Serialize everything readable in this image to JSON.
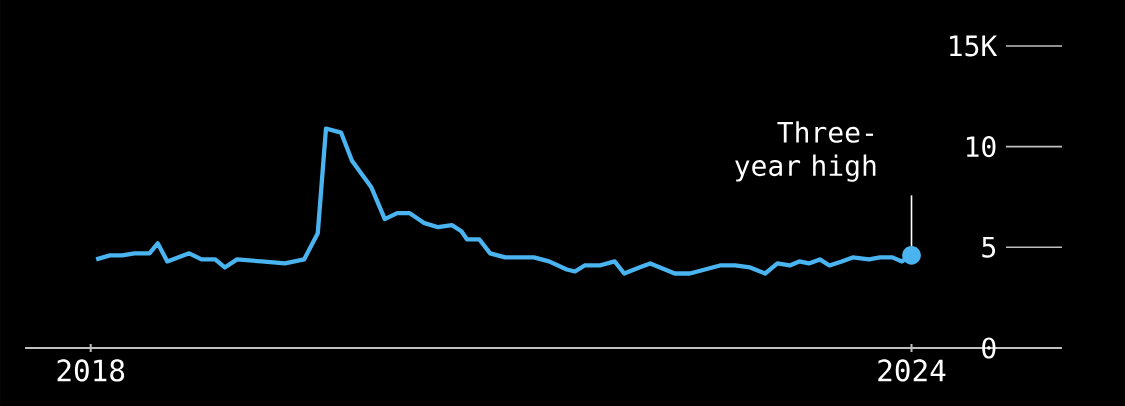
{
  "chart_data": {
    "type": "line",
    "color": "#4ab4f0",
    "x": [
      2018.04,
      2018.14,
      2018.23,
      2018.32,
      2018.43,
      2018.49,
      2018.56,
      2018.72,
      2018.81,
      2018.91,
      2018.98,
      2019.07,
      2019.25,
      2019.42,
      2019.56,
      2019.66,
      2019.72,
      2019.83,
      2019.91,
      2020.05,
      2020.15,
      2020.24,
      2020.33,
      2020.44,
      2020.54,
      2020.64,
      2020.71,
      2020.75,
      2020.84,
      2020.92,
      2021.03,
      2021.24,
      2021.35,
      2021.48,
      2021.54,
      2021.61,
      2021.72,
      2021.83,
      2021.9,
      2022.01,
      2022.09,
      2022.27,
      2022.38,
      2022.49,
      2022.6,
      2022.71,
      2022.82,
      2022.93,
      2023.02,
      2023.11,
      2023.18,
      2023.25,
      2023.33,
      2023.4,
      2023.49,
      2023.57,
      2023.69,
      2023.77,
      2023.86,
      2023.93,
      2024.0
    ],
    "values": [
      4.4,
      4.6,
      4.6,
      4.7,
      4.7,
      5.2,
      4.3,
      4.7,
      4.4,
      4.4,
      4.0,
      4.4,
      4.3,
      4.2,
      4.4,
      5.7,
      10.9,
      10.7,
      9.3,
      8.0,
      6.4,
      6.7,
      6.7,
      6.2,
      6.0,
      6.1,
      5.8,
      5.4,
      5.4,
      4.7,
      4.5,
      4.5,
      4.3,
      3.9,
      3.8,
      4.1,
      4.1,
      4.3,
      3.7,
      4.0,
      4.2,
      3.7,
      3.7,
      3.9,
      4.1,
      4.1,
      4.0,
      3.7,
      4.2,
      4.1,
      4.3,
      4.2,
      4.4,
      4.1,
      4.3,
      4.5,
      4.4,
      4.5,
      4.5,
      4.3,
      4.6
    ],
    "xlim": [
      2017.52,
      2025.1
    ],
    "ylim": [
      0,
      15
    ],
    "xticks": [
      2018,
      2024
    ],
    "yticks": [
      0,
      5,
      10,
      {
        "value": 15,
        "label": "15K"
      }
    ],
    "annotations": [
      {
        "text": "Three-year high",
        "x": 2024,
        "y": 4.6
      }
    ]
  }
}
